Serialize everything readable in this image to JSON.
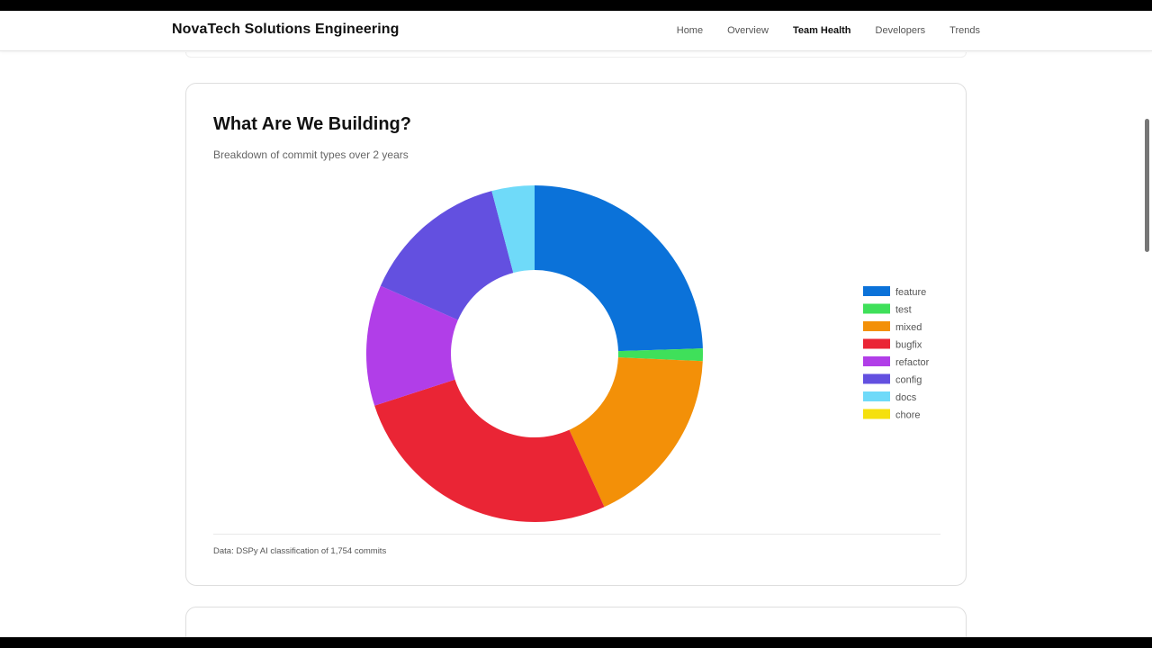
{
  "nav": {
    "brand": "NovaTech Solutions Engineering",
    "links": [
      "Home",
      "Overview",
      "Team Health",
      "Developers",
      "Trends"
    ],
    "active": "Team Health"
  },
  "card": {
    "title": "What Are We Building?",
    "subtitle": "Breakdown of commit types over 2 years",
    "footer": "Data: DSPy AI classification of 1,754 commits"
  },
  "chart_data": {
    "type": "pie",
    "donut": true,
    "title": "What Are We Building?",
    "subtitle": "Breakdown of commit types over 2 years",
    "legend_position": "right",
    "categories": [
      "feature",
      "test",
      "mixed",
      "bugfix",
      "refactor",
      "config",
      "docs",
      "chore"
    ],
    "values": [
      24.5,
      1.2,
      17.5,
      26.8,
      11.6,
      14.3,
      4.1,
      0
    ],
    "colors": [
      "#0b72d9",
      "#3fe05a",
      "#f39008",
      "#ea2535",
      "#b13ee8",
      "#6350e0",
      "#6fdaf9",
      "#f5e00d"
    ]
  }
}
